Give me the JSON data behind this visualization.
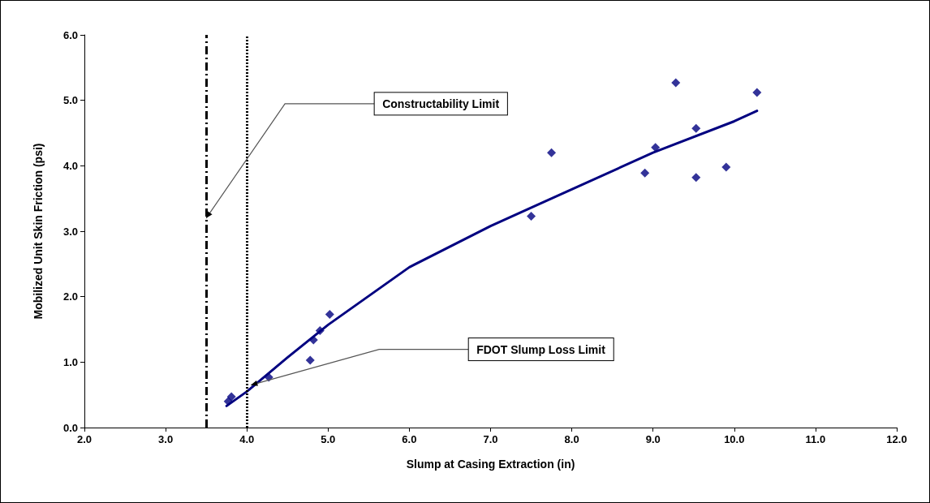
{
  "chart_data": {
    "type": "scatter",
    "xlabel": "Slump at Casing Extraction (in)",
    "ylabel": "Mobilized Unit Skin Friction (psi)",
    "xlim": [
      2,
      12
    ],
    "xticks": [
      {
        "value": 2,
        "label": "2.0"
      },
      {
        "value": 3,
        "label": "3.0"
      },
      {
        "value": 4,
        "label": "4.0"
      },
      {
        "value": 5,
        "label": "5.0"
      },
      {
        "value": 6,
        "label": "6.0"
      },
      {
        "value": 7,
        "label": "7.0"
      },
      {
        "value": 8,
        "label": "8.0"
      },
      {
        "value": 9,
        "label": "9.0"
      },
      {
        "value": 10,
        "label": "10.0"
      },
      {
        "value": 11,
        "label": "11.0"
      },
      {
        "value": 12,
        "label": "12.0"
      }
    ],
    "ylim": [
      0,
      6
    ],
    "yticks": [
      {
        "value": 0,
        "label": "0.0"
      },
      {
        "value": 1,
        "label": "1.0"
      },
      {
        "value": 2,
        "label": "2.0"
      },
      {
        "value": 3,
        "label": "3.0"
      },
      {
        "value": 4,
        "label": "4.0"
      },
      {
        "value": 5,
        "label": "5.0"
      },
      {
        "value": 6,
        "label": "6.0"
      }
    ],
    "grid": false,
    "series": [
      {
        "color": "#000080",
        "marker": "diamond",
        "x": [
          3.77,
          3.81,
          4.27,
          4.78,
          4.82,
          4.9,
          5.02,
          7.5,
          7.75,
          8.9,
          9.03,
          9.28,
          9.53,
          9.53,
          9.9,
          10.28
        ],
        "values": [
          0.4,
          0.47,
          0.77,
          1.03,
          1.34,
          1.48,
          1.73,
          3.23,
          4.2,
          3.89,
          4.28,
          5.27,
          4.57,
          3.82,
          3.98,
          5.12
        ]
      },
      {
        "type": "line",
        "color": "#000080",
        "marker": "none",
        "line_style": "solid",
        "x": [
          3.75,
          4.0,
          4.5,
          5.0,
          6.0,
          7.0,
          8.0,
          9.0,
          10.0,
          10.28
        ],
        "values": [
          0.33,
          0.55,
          1.07,
          1.57,
          2.45,
          3.08,
          3.64,
          4.2,
          4.68,
          4.84
        ]
      }
    ],
    "ref_lines": [
      {
        "axis": "x",
        "value": 3.5,
        "line_style": "dashed",
        "color": "#000000"
      },
      {
        "axis": "x",
        "value": 4,
        "line_style": "dotted",
        "color": "#000000"
      }
    ],
    "annotations": [
      {
        "text": "Constructability Limit",
        "x": 3.5,
        "y": 3.2
      },
      {
        "text": "FDOT Slump Loss Limit",
        "x": 4.05,
        "y": 0.65
      }
    ]
  }
}
